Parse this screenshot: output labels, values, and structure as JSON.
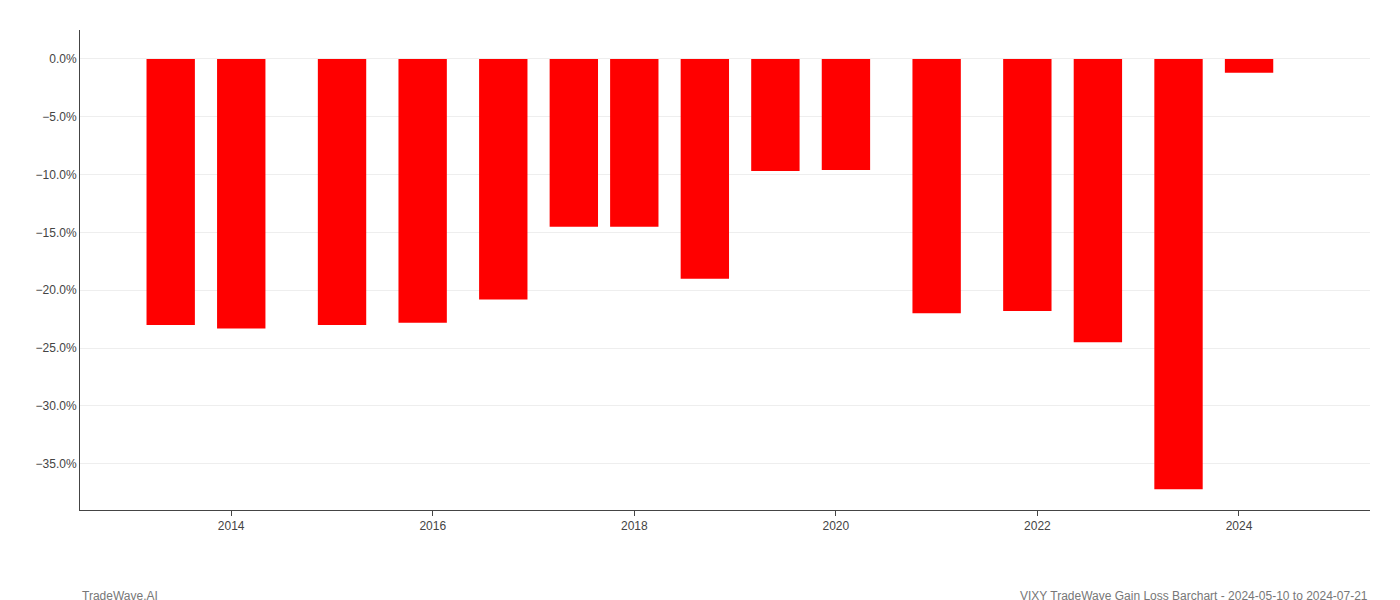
{
  "chart_data": {
    "type": "bar",
    "x": [
      2013.4,
      2014.1,
      2015.1,
      2015.9,
      2016.7,
      2017.4,
      2018.0,
      2018.7,
      2019.4,
      2020.1,
      2021.0,
      2021.9,
      2022.6,
      2023.4,
      2024.1
    ],
    "values": [
      -23.0,
      -23.3,
      -23.0,
      -22.8,
      -20.8,
      -14.5,
      -14.5,
      -19.0,
      -9.7,
      -9.6,
      -22.0,
      -21.8,
      -24.5,
      -37.2,
      -1.2
    ],
    "color": "#ff0000",
    "xlim": [
      2012.5,
      2025.3
    ],
    "xticks": [
      2014,
      2016,
      2018,
      2020,
      2022,
      2024
    ],
    "ylim": [
      -39,
      2.5
    ],
    "yticks": [
      {
        "value": 0.0,
        "label": "0.0%"
      },
      {
        "value": -5.0,
        "label": "−5.0%"
      },
      {
        "value": -10.0,
        "label": "−10.0%"
      },
      {
        "value": -15.0,
        "label": "−15.0%"
      },
      {
        "value": -20.0,
        "label": "−20.0%"
      },
      {
        "value": -25.0,
        "label": "−25.0%"
      },
      {
        "value": -30.0,
        "label": "−30.0%"
      },
      {
        "value": -35.0,
        "label": "−35.0%"
      }
    ],
    "grid": true,
    "annotations": [
      "TradeWave.AI",
      "VIXY TradeWave Gain Loss Barchart - 2024-05-10 to 2024-07-21"
    ]
  }
}
